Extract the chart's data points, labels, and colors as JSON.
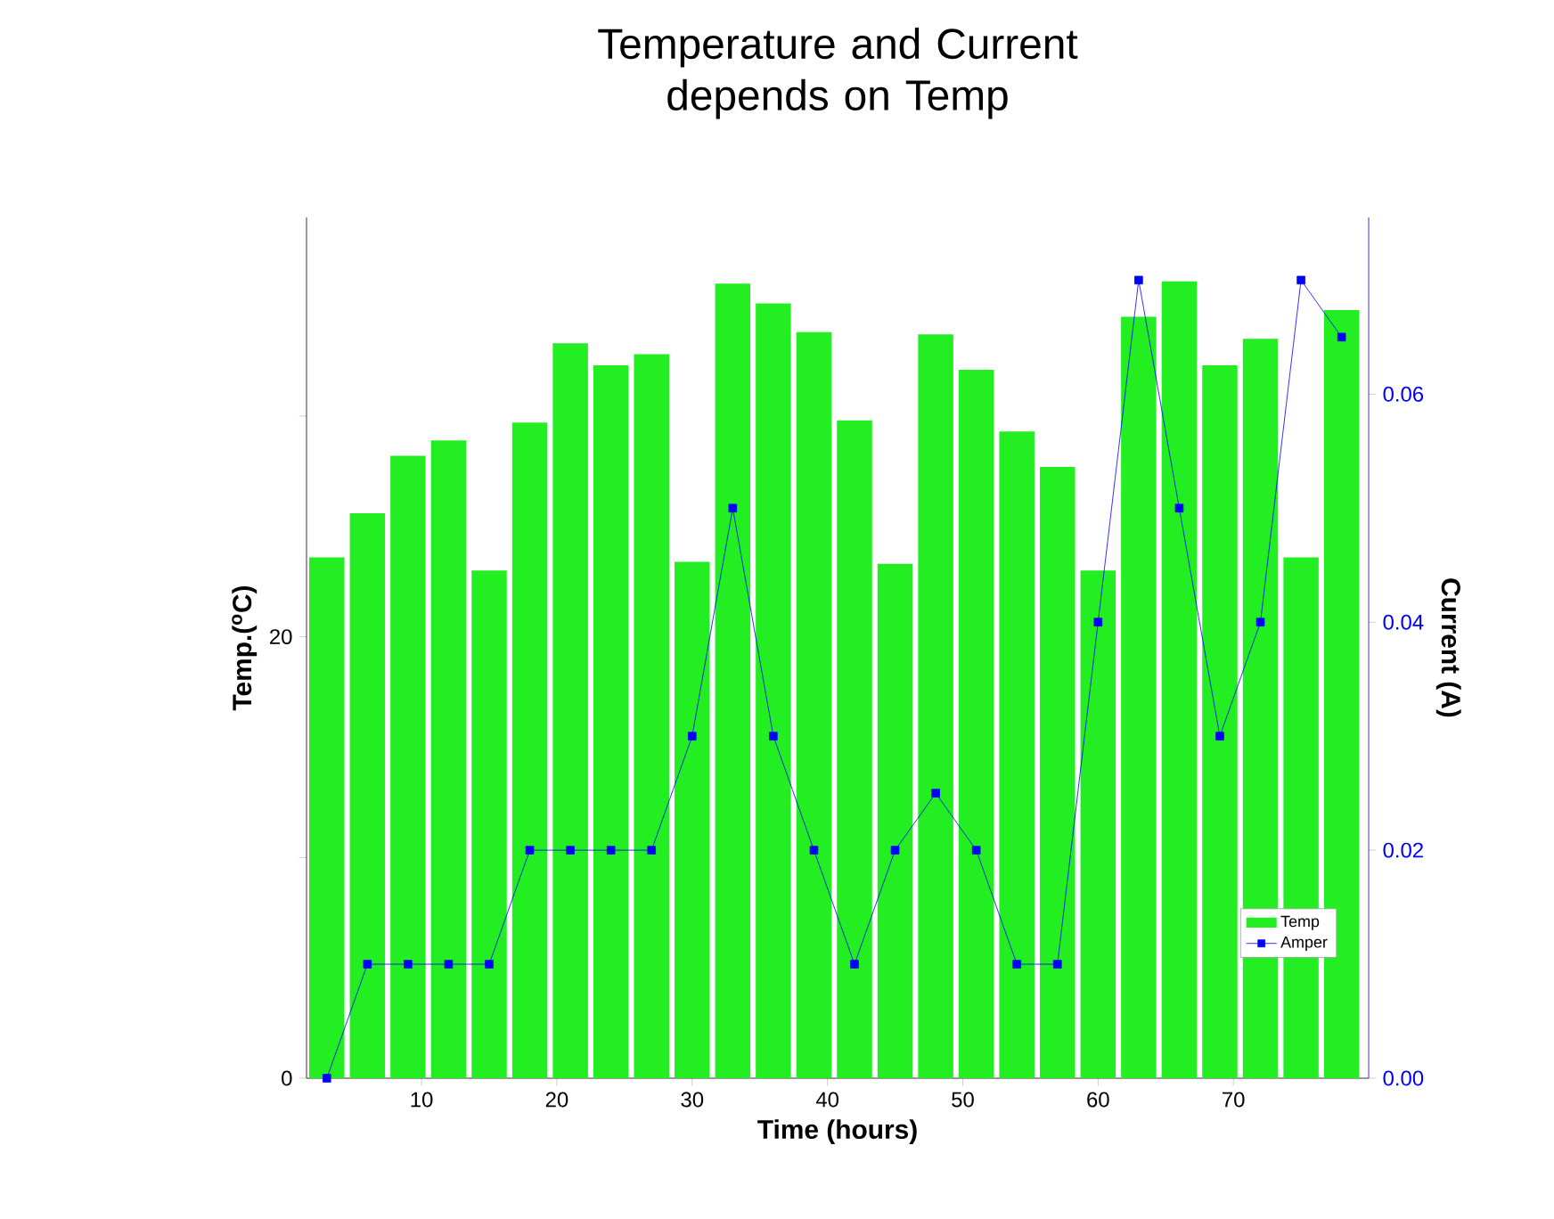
{
  "chart_data": {
    "type": "bar",
    "title": "Temperature and Current depends on Temp",
    "xlabel": "Time (hours)",
    "ylabel": "Temp.($^{o}$C)",
    "y2label": "Current (A)",
    "x": [
      3,
      6,
      9,
      12,
      15,
      18,
      21,
      24,
      27,
      30,
      33,
      36,
      39,
      42,
      45,
      48,
      51,
      54,
      57,
      60,
      63,
      66,
      69,
      72,
      75,
      78
    ],
    "series": [
      {
        "name": "Temp",
        "color": "#22ee22",
        "values": [
          23.6,
          25.6,
          28.2,
          28.9,
          23.0,
          29.7,
          33.3,
          32.3,
          32.8,
          23.4,
          36.0,
          35.1,
          33.8,
          29.8,
          23.3,
          33.7,
          32.1,
          29.3,
          27.7,
          23.0,
          34.5,
          36.1,
          32.3,
          33.5,
          23.6,
          34.8
        ]
      },
      {
        "name": "Amper",
        "type": "line",
        "axis": "y2",
        "color": "#0000ff",
        "marker": "square",
        "line_style": "solid",
        "values": [
          0,
          0.01,
          0.01,
          0.01,
          0.01,
          0.02,
          0.02,
          0.02,
          0.02,
          0.03,
          0.05,
          0.03,
          0.02,
          0.01,
          0.02,
          0.025,
          0.02,
          0.01,
          0.01,
          0.04,
          0.07,
          0.05,
          0.03,
          0.04,
          0.07,
          0.065
        ]
      }
    ],
    "xlim": [
      1.5,
      80
    ],
    "xticks": [
      10,
      20,
      30,
      40,
      50,
      60,
      70
    ],
    "ylim": [
      0,
      39
    ],
    "yticks": [
      0,
      {
        "value": 10,
        "label": null
      },
      20,
      {
        "value": 30,
        "label": null
      }
    ],
    "y2lim": [
      0,
      0.0755
    ],
    "y2ticks": [
      {
        "value": 0,
        "label": "0.00"
      },
      {
        "value": 0.02,
        "label": "0.02"
      },
      {
        "value": 0.04,
        "label": "0.04"
      },
      {
        "value": 0.06,
        "label": "0.06"
      }
    ],
    "legend": "bottom right",
    "grid": false
  }
}
